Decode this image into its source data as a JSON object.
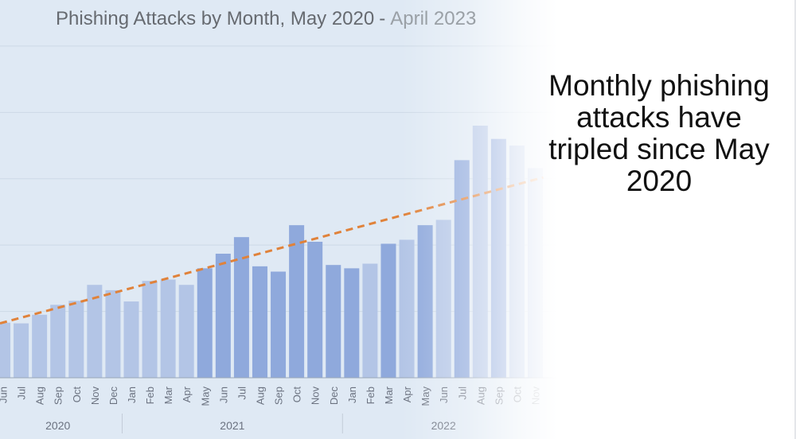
{
  "headline": "Monthly phishing attacks have tripled since May 2020",
  "chart_data": {
    "type": "bar",
    "title_parts": [
      "Phishing Attacks by Month, May 2020",
      "-",
      "April 2023"
    ],
    "categories": [
      "Jun",
      "Jul",
      "Aug",
      "Sep",
      "Oct",
      "Nov",
      "Dec",
      "Jan",
      "Feb",
      "Mar",
      "Apr",
      "May",
      "Jun",
      "Jul",
      "Aug",
      "Sep",
      "Oct",
      "Nov",
      "Dec",
      "Jan",
      "Feb",
      "Mar",
      "Apr",
      "May",
      "Jun",
      "Jul",
      "Aug",
      "Sep",
      "Oct",
      "Nov"
    ],
    "year_groups": [
      {
        "label": "2020",
        "start": 0,
        "end": 6
      },
      {
        "label": "2021",
        "start": 7,
        "end": 18
      },
      {
        "label": "2022",
        "start": 19,
        "end": 29
      }
    ],
    "values": [
      83,
      82,
      95,
      110,
      116,
      140,
      132,
      115,
      146,
      148,
      140,
      165,
      187,
      212,
      168,
      160,
      230,
      205,
      170,
      165,
      172,
      202,
      208,
      230,
      238,
      328,
      380,
      360,
      350,
      316
    ],
    "trend": {
      "start": 82,
      "end": 302,
      "style": "dashed",
      "color": "#e0823a"
    },
    "ylim": [
      0,
      500
    ],
    "grid": true,
    "xlabel": "",
    "ylabel": "",
    "colors": {
      "bar_light": "#b3c5e6",
      "bar_dark": "#8fa9dc",
      "background": "#dfe9f4",
      "axis": "#9aa7b8"
    }
  }
}
